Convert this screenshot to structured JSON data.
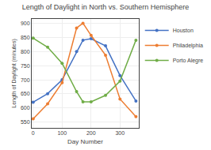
{
  "chart_data": {
    "type": "line",
    "title": "Length of Daylight in North vs. Southern Hemisphere",
    "xlabel": "Day Number",
    "ylabel": "Length of Daylight (minutes)",
    "x": [
      0,
      50,
      100,
      150,
      172,
      200,
      250,
      300,
      355
    ],
    "series": [
      {
        "name": "Houston",
        "color": "#4472c4",
        "values": [
          621,
          651,
          700,
          800,
          840,
          845,
          820,
          715,
          625
        ]
      },
      {
        "name": "Philadelphia",
        "color": "#ed7d31",
        "values": [
          562,
          615,
          690,
          883,
          900,
          857,
          787,
          632,
          570
        ]
      },
      {
        "name": "Porto Alegre",
        "color": "#70ad47",
        "values": [
          847,
          815,
          758,
          658,
          622,
          622,
          645,
          695,
          840
        ]
      }
    ],
    "xlim": [
      -5,
      365
    ],
    "ylim": [
      530,
      915
    ],
    "xticks": [
      0,
      100,
      200,
      300
    ],
    "yticks": [
      550,
      600,
      650,
      700,
      750,
      800,
      850,
      900
    ],
    "grid": true,
    "legend": "upper right",
    "marker": "circle",
    "line_style": "solid"
  }
}
